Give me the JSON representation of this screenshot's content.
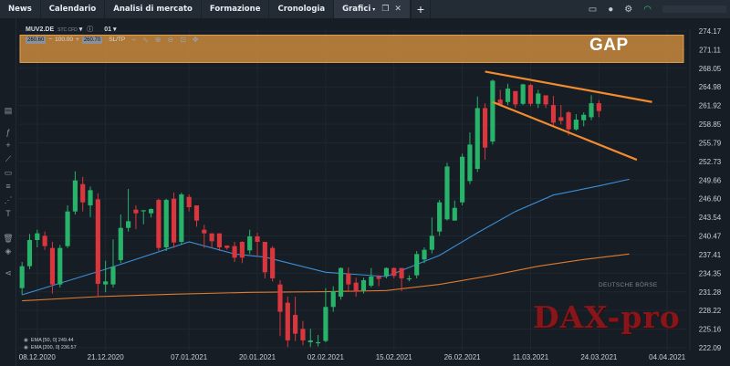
{
  "nav": {
    "tabs": [
      {
        "label": "News",
        "active": false
      },
      {
        "label": "Calendario",
        "active": false
      },
      {
        "label": "Analisi di mercato",
        "active": false
      },
      {
        "label": "Formazione",
        "active": false
      },
      {
        "label": "Cronologia",
        "active": false
      },
      {
        "label": "Grafici",
        "active": true
      }
    ],
    "active_caret": "▾",
    "extra_icons": [
      "window-icon",
      "close-icon"
    ],
    "add_tab_icon": "+"
  },
  "top_right_icons": [
    "wallet-icon",
    "user-icon",
    "settings-icon",
    "wifi-icon"
  ],
  "toolbar": {
    "symbol": "MUV2.DE",
    "symbol_badge": "STC CFD",
    "period": "01",
    "sell_price": "260.60",
    "minus": "−",
    "volume": "100.00",
    "plus": "+",
    "buy_price": "260.70",
    "sltp": "SL/TP"
  },
  "annotation": {
    "gap_label": "GAP"
  },
  "ema_legend": [
    {
      "label": "EMA [50, 0] 249.44",
      "color": "#3b8fd9"
    },
    {
      "label": "EMA [200, 0] 236.57",
      "color": "#e07a2e"
    }
  ],
  "watermarks": {
    "exchange": "DEUTSCHE BÖRSE",
    "brand": "DAX-pro"
  },
  "colors": {
    "up": "#27b36a",
    "down": "#d9363e",
    "ema50": "#3b8fd9",
    "ema200": "#e07a2e",
    "gap_band": "#c98a3c",
    "trendline": "#f28a2e",
    "axis_text": "#c8cfd6",
    "grid": "#1f2731"
  },
  "chart_data": {
    "type": "candlestick",
    "symbol": "MUV2.DE",
    "ylim": [
      222.09,
      274.17
    ],
    "y_ticks": [
      274.17,
      271.11,
      268.05,
      264.98,
      261.92,
      258.85,
      255.79,
      252.73,
      249.66,
      246.6,
      243.54,
      240.47,
      237.41,
      234.35,
      231.28,
      228.22,
      225.16,
      222.09
    ],
    "x_tick_labels": [
      "08.12.2020",
      "21.12.2020",
      "07.01.2021",
      "20.01.2021",
      "02.02.2021",
      "15.02.2021",
      "26.02.2021",
      "11.03.2021",
      "24.03.2021",
      "04.04.2021"
    ],
    "x_tick_index": [
      2,
      11,
      22,
      31,
      40,
      49,
      58,
      67,
      76,
      85
    ],
    "n_slots": 88,
    "candles": [
      [
        231.9,
        235.5,
        230.8,
        236.2
      ],
      [
        235.5,
        239.8,
        235.0,
        240.8
      ],
      [
        239.8,
        240.9,
        238.6,
        241.5
      ],
      [
        240.5,
        238.8,
        238.2,
        241.2
      ],
      [
        238.5,
        232.5,
        231.0,
        239.5
      ],
      [
        232.5,
        238.5,
        232.0,
        239.0
      ],
      [
        238.8,
        244.5,
        238.5,
        245.5
      ],
      [
        244.5,
        249.6,
        244.0,
        251.1
      ],
      [
        249.0,
        246.0,
        244.5,
        250.2
      ],
      [
        245.5,
        248.0,
        243.6,
        248.6
      ],
      [
        246.5,
        232.6,
        230.4,
        247.5
      ],
      [
        232.5,
        233.0,
        231.2,
        236.4
      ],
      [
        232.5,
        235.4,
        232.0,
        239.9
      ],
      [
        236.5,
        241.8,
        236.0,
        244.0
      ],
      [
        241.8,
        242.9,
        241.2,
        248.2
      ],
      [
        244.8,
        244.2,
        241.6,
        245.5
      ],
      [
        244.7,
        244.7,
        242.4,
        244.7
      ],
      [
        244.2,
        244.9,
        243.5,
        245.0
      ],
      [
        246.4,
        238.5,
        238.0,
        246.6
      ],
      [
        238.6,
        246.4,
        238.0,
        246.6
      ],
      [
        246.6,
        239.4,
        238.5,
        247.6
      ],
      [
        239.5,
        247.3,
        239.0,
        247.6
      ],
      [
        246.9,
        245.2,
        244.5,
        247.3
      ],
      [
        245.5,
        243.0,
        242.0,
        245.5
      ],
      [
        241.5,
        240.9,
        238.5,
        242.3
      ],
      [
        240.9,
        239.6,
        238.5,
        240.9
      ],
      [
        240.9,
        238.6,
        238.0,
        240.9
      ],
      [
        238.9,
        238.5,
        238.2,
        238.9
      ],
      [
        238.8,
        236.9,
        236.2,
        239.5
      ],
      [
        239.5,
        236.9,
        236.0,
        239.6
      ],
      [
        238.1,
        240.4,
        237.5,
        241.5
      ],
      [
        240.4,
        239.5,
        237.0,
        241.0
      ],
      [
        239.5,
        234.5,
        233.5,
        239.5
      ],
      [
        238.5,
        233.5,
        233.0,
        238.8
      ],
      [
        232.5,
        228.0,
        224.0,
        233.2
      ],
      [
        229.5,
        223.3,
        222.2,
        230.5
      ],
      [
        227.5,
        224.4,
        223.2,
        230.5
      ],
      [
        225.2,
        223.3,
        222.5,
        226.5
      ],
      [
        223.0,
        223.3,
        222.2,
        225.2
      ],
      [
        223.0,
        223.0,
        222.3,
        224.2
      ],
      [
        223.2,
        228.8,
        223.0,
        231.9
      ],
      [
        228.8,
        231.4,
        228.0,
        232.2
      ],
      [
        230.5,
        235.2,
        230.0,
        235.3
      ],
      [
        234.3,
        232.5,
        231.4,
        235.3
      ],
      [
        232.8,
        231.4,
        230.5,
        233.6
      ],
      [
        231.5,
        233.2,
        231.0,
        233.6
      ],
      [
        232.3,
        233.8,
        232.0,
        235.2
      ],
      [
        233.8,
        233.4,
        232.2,
        234.0
      ],
      [
        233.9,
        235.2,
        233.5,
        235.3
      ],
      [
        235.2,
        233.9,
        233.5,
        235.3
      ],
      [
        235.2,
        233.5,
        231.4,
        235.2
      ],
      [
        233.5,
        233.5,
        233.0,
        234.0
      ],
      [
        234.0,
        237.5,
        233.5,
        238.0
      ],
      [
        236.6,
        238.2,
        236.0,
        238.6
      ],
      [
        238.2,
        240.5,
        237.6,
        243.5
      ],
      [
        241.2,
        246.0,
        240.5,
        246.4
      ],
      [
        243.2,
        251.9,
        243.0,
        252.5
      ],
      [
        243.0,
        245.1,
        243.0,
        246.3
      ],
      [
        246.0,
        253.5,
        245.5,
        254.0
      ],
      [
        249.5,
        255.5,
        249.0,
        257.5
      ],
      [
        251.5,
        261.5,
        251.0,
        263.4
      ],
      [
        261.5,
        255.0,
        253.0,
        262.3
      ],
      [
        256.0,
        266.0,
        255.5,
        266.2
      ],
      [
        262.9,
        262.1,
        261.8,
        264.5
      ],
      [
        262.5,
        264.7,
        262.0,
        265.5
      ],
      [
        264.3,
        262.1,
        261.5,
        264.3
      ],
      [
        262.2,
        265.4,
        262.0,
        265.5
      ],
      [
        265.3,
        262.2,
        261.8,
        265.5
      ],
      [
        262.2,
        263.9,
        261.5,
        264.5
      ],
      [
        263.6,
        262.1,
        261.5,
        263.6
      ],
      [
        262.0,
        259.1,
        258.5,
        263.5
      ],
      [
        260.0,
        259.4,
        258.8,
        262.0
      ],
      [
        260.8,
        258.0,
        257.0,
        261.0
      ],
      [
        258.0,
        259.6,
        257.8,
        260.5
      ],
      [
        259.5,
        260.4,
        258.5,
        260.8
      ],
      [
        260.0,
        262.3,
        259.5,
        263.6
      ],
      [
        262.3,
        261.0,
        260.0,
        262.8
      ]
    ],
    "ema50": [
      [
        0,
        230.8
      ],
      [
        11,
        235.0
      ],
      [
        22,
        239.5
      ],
      [
        28,
        237.5
      ],
      [
        32,
        237.0
      ],
      [
        40,
        234.5
      ],
      [
        48,
        233.8
      ],
      [
        55,
        237.3
      ],
      [
        60,
        241.0
      ],
      [
        65,
        244.5
      ],
      [
        70,
        247.2
      ],
      [
        76,
        248.7
      ],
      [
        80,
        249.8
      ]
    ],
    "ema200": [
      [
        0,
        229.8
      ],
      [
        10,
        230.5
      ],
      [
        20,
        230.9
      ],
      [
        30,
        231.2
      ],
      [
        40,
        231.3
      ],
      [
        48,
        231.5
      ],
      [
        55,
        232.5
      ],
      [
        62,
        234.0
      ],
      [
        68,
        235.5
      ],
      [
        74,
        236.6
      ],
      [
        80,
        237.5
      ]
    ],
    "gap_zone": [
      269.0,
      273.5
    ],
    "trendlines": [
      {
        "from": [
          61,
          267.5
        ],
        "to": [
          83,
          262.5
        ]
      },
      {
        "from": [
          62,
          262.5
        ],
        "to": [
          81,
          253.0
        ]
      }
    ]
  }
}
